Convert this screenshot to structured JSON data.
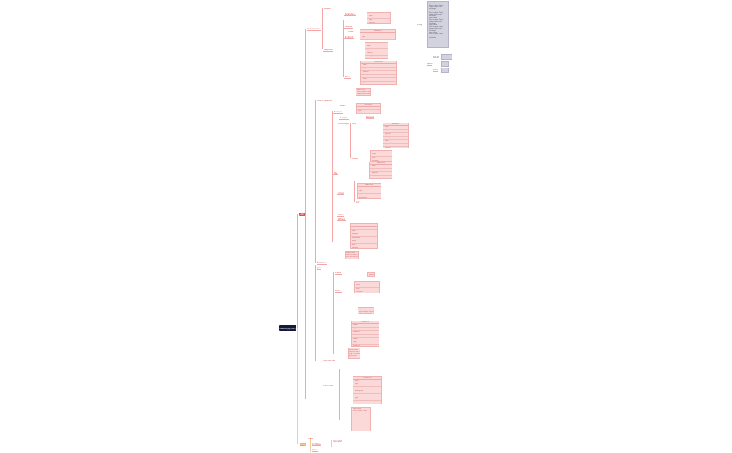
{
  "root": {
    "label": "xBeeAI (Python)"
  },
  "branches": [
    {
      "label": "API",
      "color": "#e84c4c"
    },
    {
      "label": "Usage",
      "color": "#f5a05a"
    }
  ],
  "nodes": [
    "Authentication",
    "Request",
    "Response",
    "Parameters",
    "Headers",
    "Endpoints",
    "Models",
    "Errors",
    "Chat completions",
    "Messages",
    "Stream",
    "Examples",
    "Embeddings",
    "Input",
    "Output",
    "Files",
    "Upload",
    "List",
    "Delete",
    "Retrieve",
    "Fine-tuning",
    "Jobs",
    "Events",
    "Status",
    "Install",
    "Configure",
    "Client",
    "Quickstart",
    "Example code",
    "Environment"
  ],
  "table_header": "Parameters",
  "table_rows": [
    "name",
    "type",
    "required",
    "description"
  ],
  "code_box": [
    "import xbee",
    "client = xbee.Client()",
    "resp = client.chat(...)",
    "print(resp)"
  ],
  "grey_nodes": [
    "Config",
    "Options",
    "Defaults",
    "Return"
  ]
}
